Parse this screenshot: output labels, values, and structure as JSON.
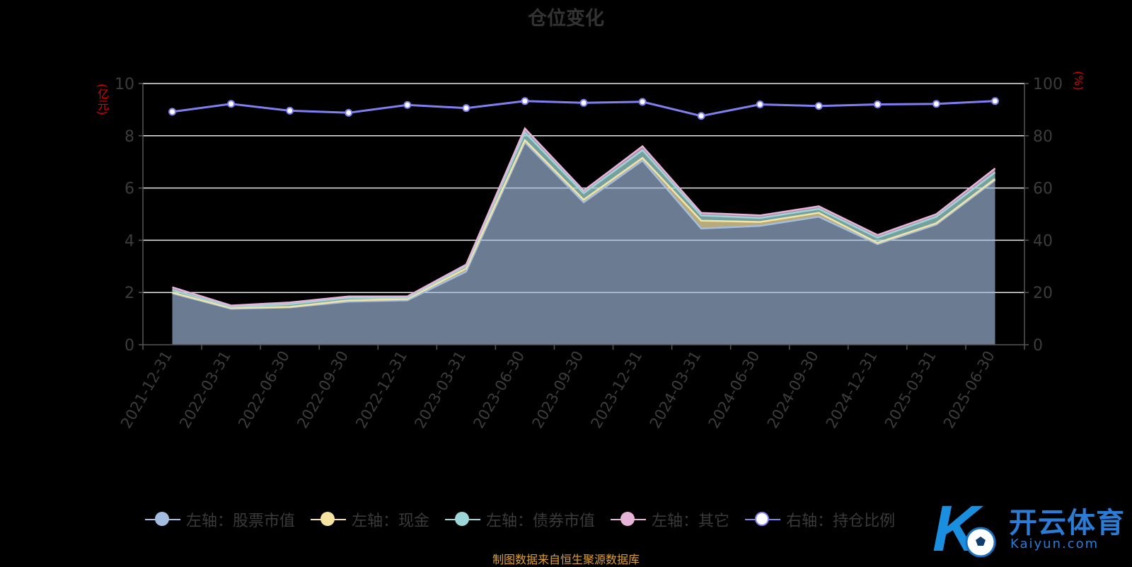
{
  "title": "仓位变化",
  "left_unit": "(亿元)",
  "right_unit": "(%)",
  "source_note": "制图数据来自恒生聚源数据库",
  "watermark": {
    "brand": "开云体育",
    "url": "Kaiyun.com",
    "logo_letter": "K"
  },
  "legend": [
    {
      "label": "左轴：股票市值",
      "color": "#a3bde0"
    },
    {
      "label": "左轴：现金",
      "color": "#f5e3a3"
    },
    {
      "label": "左轴：债券市值",
      "color": "#9dd6d6"
    },
    {
      "label": "左轴：其它",
      "color": "#e8b3d8"
    },
    {
      "label": "右轴：持仓比例",
      "color": "#7f7ff2"
    }
  ],
  "chart_data": {
    "type": "area",
    "stacked": true,
    "categories": [
      "2021-12-31",
      "2022-03-31",
      "2022-06-30",
      "2022-09-30",
      "2022-12-31",
      "2023-03-31",
      "2023-06-30",
      "2023-09-30",
      "2023-12-31",
      "2024-03-31",
      "2024-06-30",
      "2024-09-30",
      "2024-12-31",
      "2025-03-31",
      "2025-06-30"
    ],
    "left_axis": {
      "label": "(亿元)",
      "ylim": [
        0,
        10
      ],
      "ticks": [
        0,
        2,
        4,
        6,
        8,
        10
      ]
    },
    "right_axis": {
      "label": "(%)",
      "ylim": [
        0,
        100
      ],
      "ticks": [
        0,
        20,
        40,
        60,
        80,
        100
      ]
    },
    "series": [
      {
        "name": "左轴：股票市值",
        "axis": "left",
        "color": "#a3bde0",
        "values": [
          1.97,
          1.38,
          1.43,
          1.65,
          1.7,
          2.8,
          7.75,
          5.45,
          7.05,
          4.45,
          4.55,
          4.9,
          3.85,
          4.6,
          6.3
        ]
      },
      {
        "name": "左轴：现金",
        "axis": "left",
        "color": "#f5e3a3",
        "values": [
          0.03,
          0.02,
          0.02,
          0.05,
          0.05,
          0.12,
          0.08,
          0.1,
          0.1,
          0.3,
          0.15,
          0.15,
          0.05,
          0.05,
          0.05
        ]
      },
      {
        "name": "左轴：债券市值",
        "axis": "left",
        "color": "#9dd6d6",
        "values": [
          0.1,
          0.05,
          0.1,
          0.1,
          0.05,
          0.1,
          0.3,
          0.25,
          0.3,
          0.2,
          0.15,
          0.15,
          0.2,
          0.25,
          0.25
        ]
      },
      {
        "name": "左轴：其它",
        "axis": "left",
        "color": "#e8b3d8",
        "values": [
          0.1,
          0.05,
          0.07,
          0.05,
          0.05,
          0.05,
          0.15,
          0.1,
          0.15,
          0.1,
          0.1,
          0.1,
          0.1,
          0.1,
          0.15
        ]
      },
      {
        "name": "右轴：持仓比例",
        "axis": "right",
        "type": "line",
        "color": "#7f7ff2",
        "values": [
          89.2,
          92.2,
          89.6,
          88.8,
          91.8,
          90.6,
          93.3,
          92.6,
          93.0,
          87.6,
          92.0,
          91.4,
          92.0,
          92.2,
          93.3
        ]
      }
    ],
    "grid": true,
    "legend_position": "bottom"
  }
}
